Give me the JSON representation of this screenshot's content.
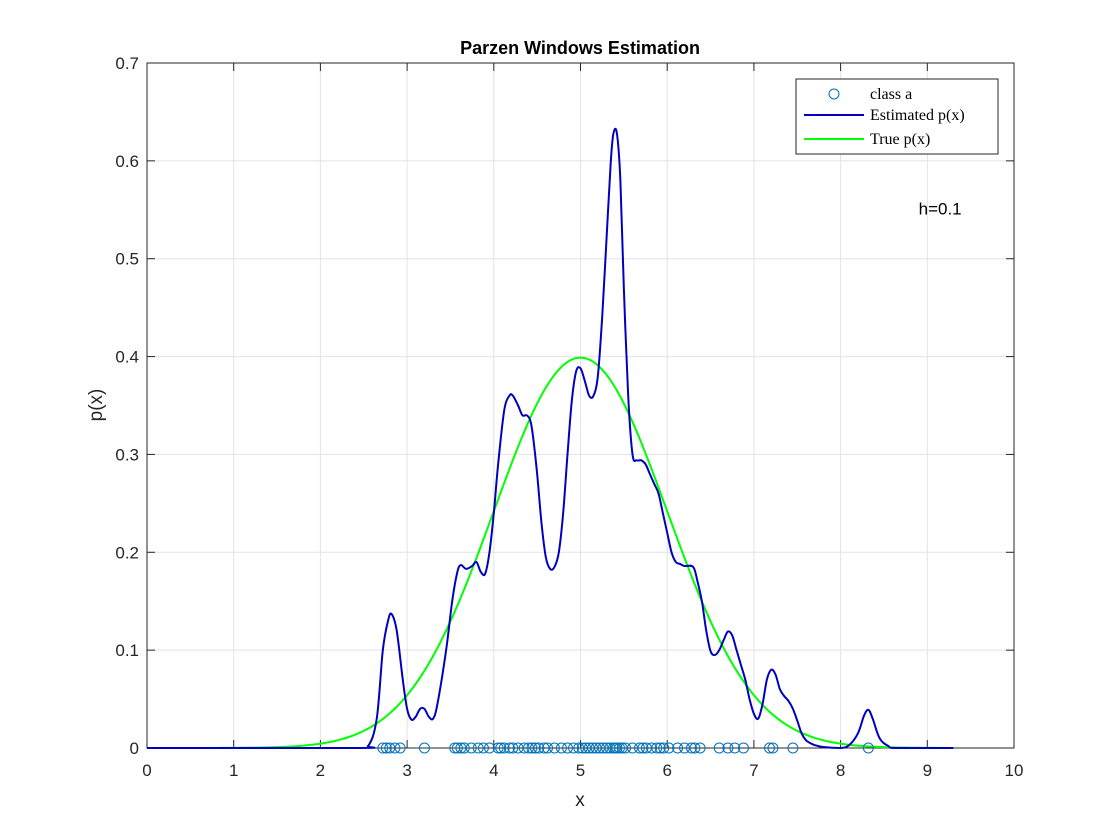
{
  "chart_data": {
    "type": "line",
    "title": "Parzen Windows Estimation",
    "xlabel": "x",
    "ylabel": "p(x)",
    "xlim": [
      0,
      10
    ],
    "ylim": [
      0,
      0.7
    ],
    "xticks": [
      "0",
      "1",
      "2",
      "3",
      "4",
      "5",
      "6",
      "7",
      "8",
      "9",
      "10"
    ],
    "yticks": [
      "0",
      "0.1",
      "0.2",
      "0.3",
      "0.4",
      "0.5",
      "0.6",
      "0.7"
    ],
    "grid": true,
    "legend_position": "top-right",
    "annotation": {
      "text": "h=0.1",
      "x": 8.9,
      "y": 0.545
    },
    "series": [
      {
        "name": "class a",
        "kind": "scatter",
        "marker": "circle",
        "color": "#0072BD",
        "x": [
          2.72,
          2.76,
          2.8,
          2.86,
          2.92,
          3.2,
          3.55,
          3.58,
          3.62,
          3.66,
          3.74,
          3.82,
          3.88,
          3.95,
          4.05,
          4.08,
          4.12,
          4.18,
          4.22,
          4.28,
          4.35,
          4.4,
          4.44,
          4.48,
          4.52,
          4.58,
          4.62,
          4.7,
          4.78,
          4.85,
          4.92,
          4.98,
          5.02,
          5.06,
          5.1,
          5.14,
          5.18,
          5.22,
          5.26,
          5.3,
          5.34,
          5.38,
          5.4,
          5.42,
          5.45,
          5.48,
          5.52,
          5.6,
          5.68,
          5.72,
          5.76,
          5.82,
          5.88,
          5.92,
          5.96,
          6.02,
          6.12,
          6.2,
          6.28,
          6.32,
          6.38,
          6.6,
          6.7,
          6.78,
          6.88,
          7.18,
          7.22,
          7.45,
          8.32
        ],
        "y": 0
      },
      {
        "name": "Estimated p(x)",
        "kind": "line",
        "color": "#0000C0",
        "x": [
          0,
          2.4,
          2.55,
          2.65,
          2.72,
          2.78,
          2.82,
          2.88,
          2.95,
          3.0,
          3.05,
          3.1,
          3.15,
          3.2,
          3.25,
          3.3,
          3.35,
          3.45,
          3.52,
          3.58,
          3.62,
          3.68,
          3.75,
          3.8,
          3.85,
          3.9,
          3.95,
          4.0,
          4.05,
          4.12,
          4.18,
          4.22,
          4.28,
          4.33,
          4.38,
          4.42,
          4.45,
          4.5,
          4.55,
          4.6,
          4.65,
          4.7,
          4.75,
          4.8,
          4.85,
          4.9,
          4.95,
          5.0,
          5.05,
          5.1,
          5.15,
          5.2,
          5.25,
          5.3,
          5.35,
          5.38,
          5.42,
          5.46,
          5.5,
          5.55,
          5.6,
          5.65,
          5.7,
          5.75,
          5.8,
          5.85,
          5.9,
          5.95,
          6.0,
          6.05,
          6.1,
          6.15,
          6.2,
          6.3,
          6.35,
          6.4,
          6.45,
          6.5,
          6.55,
          6.6,
          6.65,
          6.7,
          6.75,
          6.8,
          6.85,
          6.9,
          6.95,
          7.0,
          7.05,
          7.1,
          7.15,
          7.2,
          7.25,
          7.3,
          7.35,
          7.4,
          7.45,
          7.5,
          7.55,
          7.6,
          7.65,
          7.7,
          7.8,
          8.0,
          8.1,
          8.2,
          8.27,
          8.32,
          8.37,
          8.45,
          8.55,
          8.65,
          9.3
        ],
        "y": [
          0,
          0.0,
          0.002,
          0.03,
          0.1,
          0.13,
          0.137,
          0.12,
          0.07,
          0.04,
          0.029,
          0.032,
          0.04,
          0.04,
          0.032,
          0.03,
          0.045,
          0.1,
          0.15,
          0.18,
          0.187,
          0.183,
          0.186,
          0.19,
          0.18,
          0.178,
          0.2,
          0.24,
          0.29,
          0.345,
          0.36,
          0.36,
          0.35,
          0.34,
          0.34,
          0.335,
          0.32,
          0.28,
          0.23,
          0.195,
          0.183,
          0.185,
          0.2,
          0.24,
          0.3,
          0.355,
          0.385,
          0.388,
          0.375,
          0.36,
          0.36,
          0.38,
          0.44,
          0.52,
          0.6,
          0.628,
          0.628,
          0.58,
          0.47,
          0.36,
          0.3,
          0.294,
          0.294,
          0.29,
          0.28,
          0.27,
          0.26,
          0.24,
          0.22,
          0.2,
          0.19,
          0.188,
          0.186,
          0.185,
          0.17,
          0.15,
          0.12,
          0.099,
          0.095,
          0.1,
          0.11,
          0.119,
          0.115,
          0.1,
          0.085,
          0.07,
          0.05,
          0.035,
          0.03,
          0.045,
          0.07,
          0.08,
          0.075,
          0.06,
          0.053,
          0.048,
          0.04,
          0.028,
          0.015,
          0.008,
          0.005,
          0.003,
          0.001,
          0.0,
          0.003,
          0.015,
          0.033,
          0.039,
          0.03,
          0.01,
          0.002,
          0.0,
          0.0
        ]
      },
      {
        "name": "True p(x)",
        "kind": "line",
        "color": "#00FF00",
        "mean": 5,
        "std": 1,
        "xrange": [
          0,
          9.3
        ]
      }
    ]
  }
}
